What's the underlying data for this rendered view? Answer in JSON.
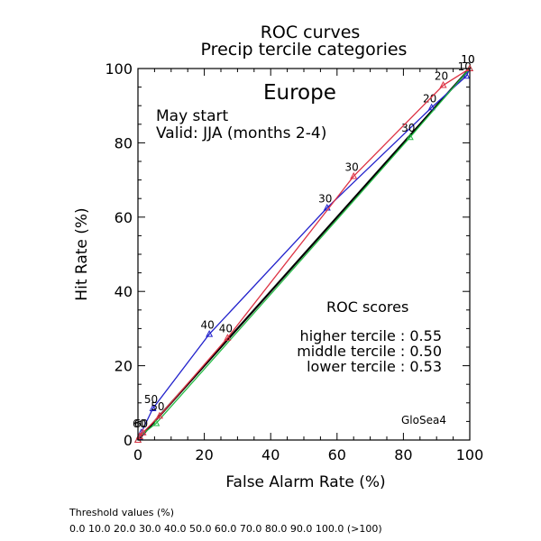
{
  "chart_data": {
    "type": "line",
    "title": "ROC curves",
    "subtitle": "Precip tercile categories",
    "region": "Europe",
    "start_text": "May start",
    "valid_text": "Valid: JJA (months 2-4)",
    "xlabel": "False Alarm Rate (%)",
    "ylabel": "Hit Rate (%)",
    "xlim": [
      0,
      100
    ],
    "ylim": [
      0,
      100
    ],
    "xticks": [
      0,
      20,
      40,
      60,
      80,
      100
    ],
    "yticks": [
      0,
      20,
      40,
      60,
      80,
      100
    ],
    "grid": false,
    "diagonal": true,
    "scores_title": "ROC scores",
    "model_label": "GloSea4",
    "series": [
      {
        "name": "higher tercile",
        "score_text": "higher tercile : 0.55",
        "color": "#2222cc",
        "points": [
          {
            "x": 100,
            "y": 100,
            "label": ""
          },
          {
            "x": 99,
            "y": 98,
            "label": "10"
          },
          {
            "x": 88.5,
            "y": 89.5,
            "label": "20"
          },
          {
            "x": 57,
            "y": 62.5,
            "label": "30"
          },
          {
            "x": 21.5,
            "y": 28.5,
            "label": "40"
          },
          {
            "x": 4.5,
            "y": 8.5,
            "label": "50"
          },
          {
            "x": 1,
            "y": 2,
            "label": "60"
          },
          {
            "x": 0.5,
            "y": 0.8,
            "label": ""
          },
          {
            "x": 0,
            "y": 0,
            "label": ""
          }
        ]
      },
      {
        "name": "middle tercile",
        "score_text": "middle tercile : 0.50",
        "color": "#22bb44",
        "points": [
          {
            "x": 100,
            "y": 100,
            "label": "10"
          },
          {
            "x": 82,
            "y": 81.5,
            "label": "30"
          },
          {
            "x": 5.5,
            "y": 4.5,
            "label": ""
          },
          {
            "x": 0.5,
            "y": 1,
            "label": ""
          },
          {
            "x": 0,
            "y": 0,
            "label": ""
          }
        ]
      },
      {
        "name": "lower tercile",
        "score_text": "lower tercile : 0.53",
        "color": "#dd3344",
        "points": [
          {
            "x": 100,
            "y": 100,
            "label": "10"
          },
          {
            "x": 92,
            "y": 95.5,
            "label": "20"
          },
          {
            "x": 65,
            "y": 71,
            "label": "30"
          },
          {
            "x": 27,
            "y": 27.5,
            "label": "40"
          },
          {
            "x": 6.5,
            "y": 6.5,
            "label": "50"
          },
          {
            "x": 1.5,
            "y": 2,
            "label": "60"
          },
          {
            "x": 0.5,
            "y": 1,
            "label": ""
          },
          {
            "x": 0,
            "y": 0,
            "label": ""
          }
        ]
      }
    ]
  },
  "threshold": {
    "title": "Threshold values (%)",
    "values": "0.0 10.0 20.0 30.0 40.0 50.0 60.0 70.0 80.0 90.0 100.0 (>100)"
  }
}
